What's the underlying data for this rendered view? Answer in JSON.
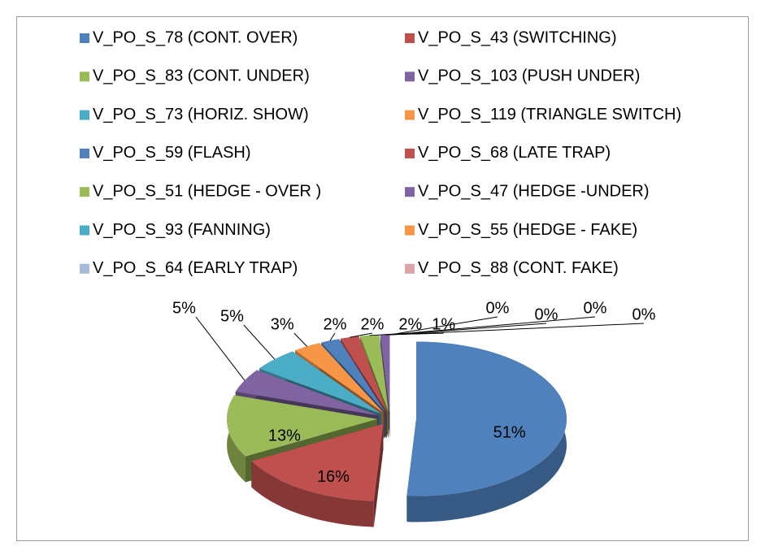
{
  "chart_data": {
    "type": "pie3d",
    "categories": [
      "V_PO_S_78 (CONT. OVER)",
      "V_PO_S_43 (SWITCHING)",
      "V_PO_S_83 (CONT. UNDER)",
      "V_PO_S_103 (PUSH UNDER)",
      "V_PO_S_73 (HORIZ. SHOW)",
      "V_PO_S_119 (TRIANGLE SWITCH)",
      "V_PO_S_59 (FLASH)",
      "V_PO_S_68 (LATE TRAP)",
      "V_PO_S_51 (HEDGE - OVER )",
      "V_PO_S_47 (HEDGE -UNDER)",
      "V_PO_S_93 (FANNING)",
      "V_PO_S_55 (HEDGE - FAKE)",
      "V_PO_S_64 (EARLY TRAP)",
      "V_PO_S_88 (CONT. FAKE)"
    ],
    "values": [
      51,
      16,
      13,
      5,
      5,
      3,
      2,
      2,
      2,
      1,
      0,
      0,
      0,
      0
    ],
    "value_labels": [
      "51%",
      "16%",
      "13%",
      "5%",
      "5%",
      "3%",
      "2%",
      "2%",
      "2%",
      "1%",
      "0%",
      "0%",
      "0%",
      "0%"
    ],
    "colors": [
      "#4f81bd",
      "#c0504d",
      "#9bbb59",
      "#8064a2",
      "#4bacc6",
      "#f79646",
      "#4f81bd",
      "#c0504d",
      "#9bbb59",
      "#8064a2",
      "#4bacc6",
      "#f79646",
      "#a7b9d9",
      "#d9a5a5"
    ],
    "legend": "top"
  }
}
